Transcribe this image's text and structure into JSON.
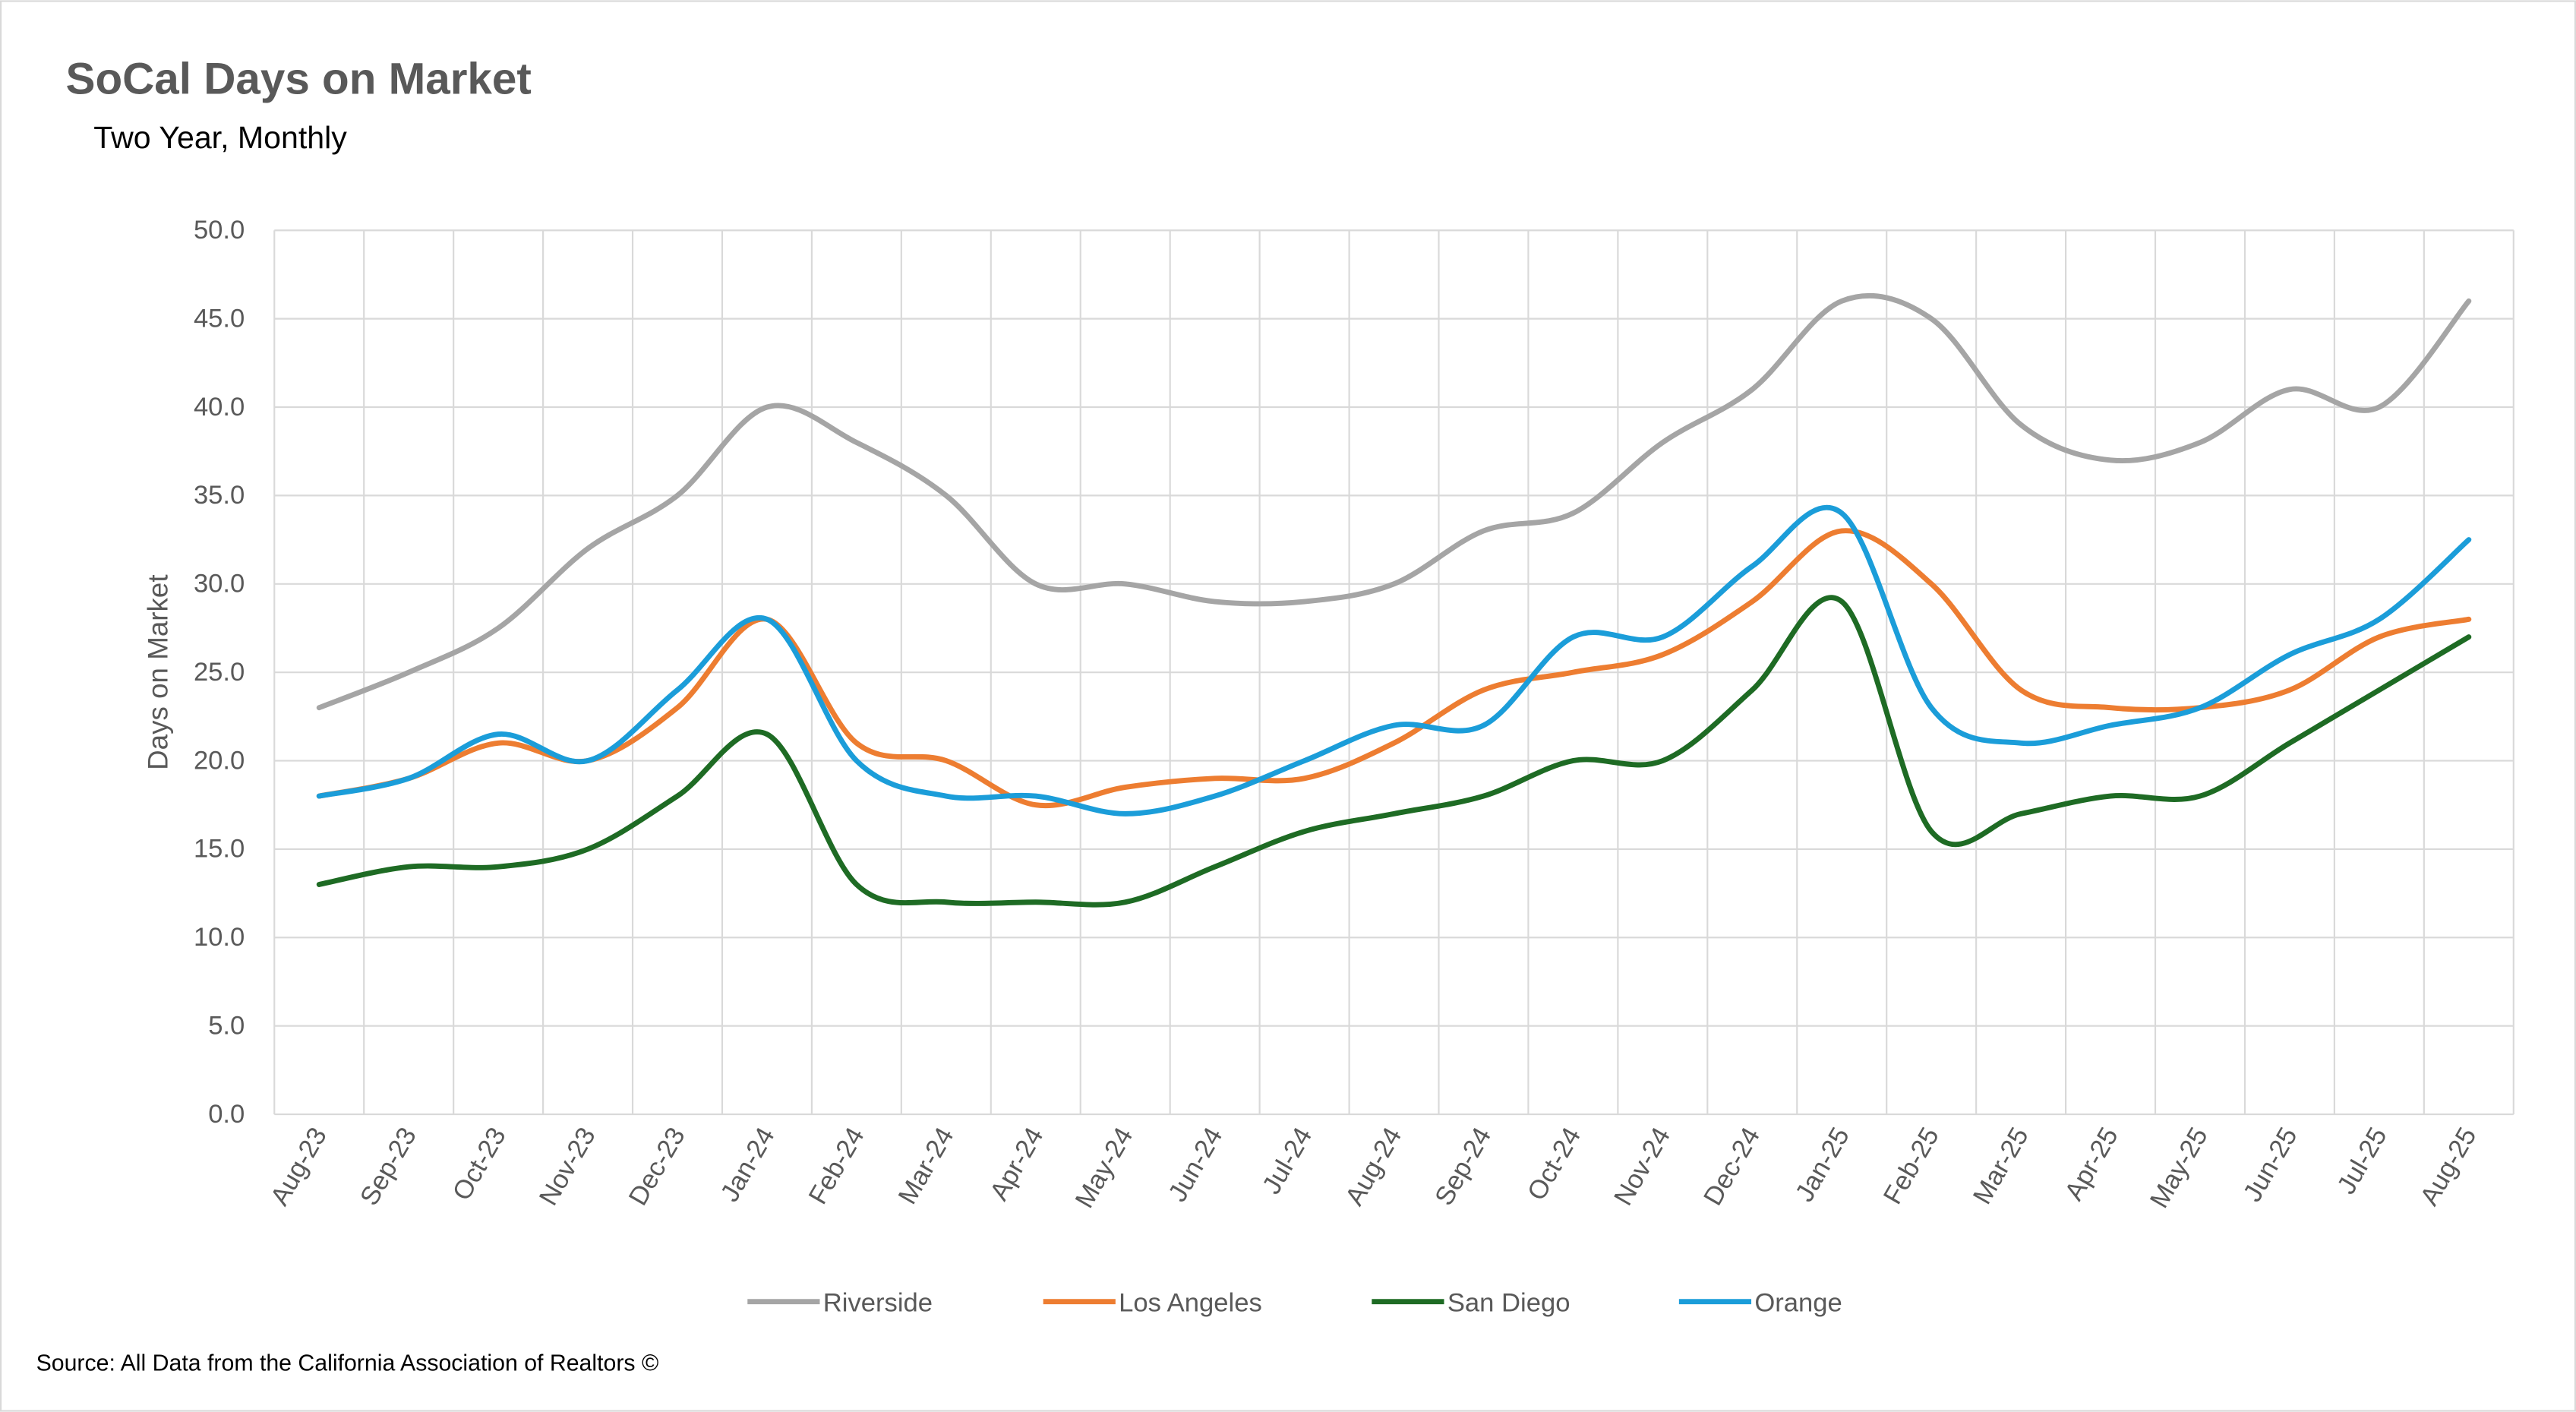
{
  "chart_data": {
    "type": "line",
    "title": "SoCal Days on Market",
    "subtitle": "Two Year, Monthly",
    "xlabel": "",
    "ylabel": "Days on Market",
    "ylim": [
      0,
      50
    ],
    "yticks": [
      "0.0",
      "5.0",
      "10.0",
      "15.0",
      "20.0",
      "25.0",
      "30.0",
      "35.0",
      "40.0",
      "45.0",
      "50.0"
    ],
    "grid": true,
    "legend_position": "bottom",
    "categories": [
      "Aug-23",
      "Sep-23",
      "Oct-23",
      "Nov-23",
      "Dec-23",
      "Jan-24",
      "Feb-24",
      "Mar-24",
      "Apr-24",
      "May-24",
      "Jun-24",
      "Jul-24",
      "Aug-24",
      "Sep-24",
      "Oct-24",
      "Nov-24",
      "Dec-24",
      "Jan-25",
      "Feb-25",
      "Mar-25",
      "Apr-25",
      "May-25",
      "Jun-25",
      "Jul-25",
      "Aug-25"
    ],
    "series": [
      {
        "name": "Riverside",
        "color": "#A5A5A5",
        "values": [
          23,
          25,
          27.5,
          32,
          35,
          40,
          38,
          35,
          30,
          30,
          29,
          29,
          30,
          33,
          34,
          38,
          41,
          46,
          45,
          39,
          37,
          38,
          41,
          40,
          46
        ]
      },
      {
        "name": "Los Angeles",
        "color": "#ED7D31",
        "values": [
          18,
          19,
          21,
          20,
          23,
          28,
          21,
          20,
          17.5,
          18.5,
          19,
          19,
          21,
          24,
          25,
          26,
          29,
          33,
          30,
          24,
          23,
          23,
          24,
          27,
          28
        ]
      },
      {
        "name": "San Diego",
        "color": "#1E6B24",
        "values": [
          13,
          14,
          14,
          15,
          18,
          21.5,
          13,
          12,
          12,
          12,
          14,
          16,
          17,
          18,
          20,
          20,
          24,
          29,
          16,
          17,
          18,
          18,
          21,
          24,
          27
        ]
      },
      {
        "name": "Orange",
        "color": "#1B9DD9",
        "values": [
          18,
          19,
          21.5,
          20,
          24,
          28,
          20,
          18,
          18,
          17,
          18,
          20,
          22,
          22,
          27,
          27,
          31,
          34,
          23,
          21,
          22,
          23,
          26,
          28,
          32.5
        ]
      }
    ]
  },
  "footer": {
    "source": "Source: All Data from the California Association of Realtors ©"
  }
}
